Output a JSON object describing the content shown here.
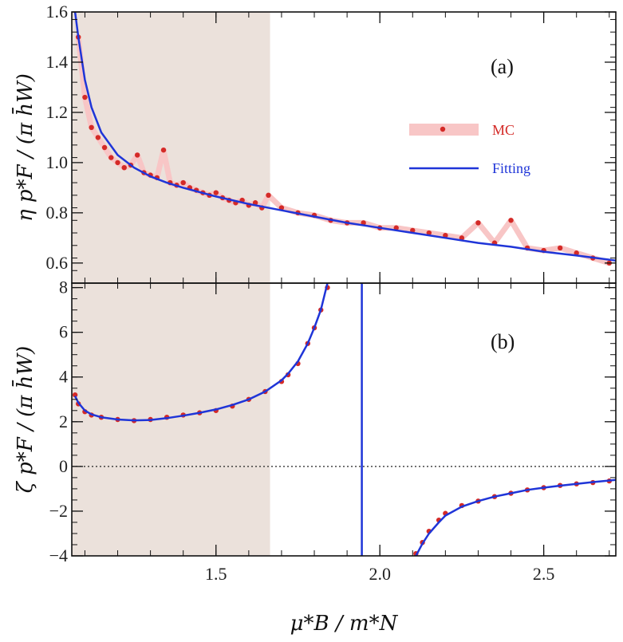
{
  "chart_data": [
    {
      "panel": "a",
      "type": "line",
      "panel_label": "(a)",
      "ylabel": "η p*F / (π h̄W)",
      "xlim": [
        1.06,
        2.72
      ],
      "ylim": [
        0.52,
        1.6
      ],
      "yticks": [
        0.6,
        0.8,
        1.0,
        1.2,
        1.4,
        1.6
      ],
      "ytick_labels": [
        "0.6",
        "0.8",
        "1.0",
        "1.2",
        "1.4",
        "1.6"
      ],
      "shaded_region_x": [
        1.06,
        1.665
      ],
      "legend": {
        "placement": "right",
        "entries": [
          "MC",
          "Fitting"
        ]
      },
      "series": [
        {
          "name": "MC",
          "style": "markers",
          "x": [
            1.08,
            1.1,
            1.12,
            1.14,
            1.16,
            1.18,
            1.2,
            1.22,
            1.24,
            1.26,
            1.28,
            1.3,
            1.32,
            1.34,
            1.36,
            1.38,
            1.4,
            1.42,
            1.44,
            1.46,
            1.48,
            1.5,
            1.52,
            1.54,
            1.56,
            1.58,
            1.6,
            1.62,
            1.64,
            1.66,
            1.7,
            1.75,
            1.8,
            1.85,
            1.9,
            1.95,
            2.0,
            2.05,
            2.1,
            2.15,
            2.2,
            2.25,
            2.3,
            2.35,
            2.4,
            2.45,
            2.5,
            2.55,
            2.6,
            2.65,
            2.7
          ],
          "y": [
            1.5,
            1.26,
            1.14,
            1.1,
            1.06,
            1.02,
            1.0,
            0.98,
            0.99,
            1.03,
            0.96,
            0.95,
            0.94,
            1.05,
            0.92,
            0.91,
            0.92,
            0.9,
            0.89,
            0.88,
            0.87,
            0.88,
            0.86,
            0.85,
            0.84,
            0.85,
            0.83,
            0.84,
            0.82,
            0.87,
            0.82,
            0.8,
            0.79,
            0.77,
            0.76,
            0.76,
            0.74,
            0.74,
            0.73,
            0.72,
            0.71,
            0.7,
            0.76,
            0.68,
            0.77,
            0.66,
            0.65,
            0.66,
            0.64,
            0.62,
            0.6
          ]
        },
        {
          "name": "Fitting",
          "style": "line",
          "x": [
            1.07,
            1.08,
            1.1,
            1.12,
            1.15,
            1.2,
            1.25,
            1.3,
            1.35,
            1.4,
            1.5,
            1.6,
            1.7,
            1.8,
            1.9,
            2.0,
            2.1,
            2.2,
            2.3,
            2.4,
            2.5,
            2.6,
            2.72
          ],
          "y": [
            1.6,
            1.5,
            1.33,
            1.22,
            1.12,
            1.03,
            0.98,
            0.945,
            0.92,
            0.9,
            0.865,
            0.835,
            0.81,
            0.785,
            0.76,
            0.74,
            0.72,
            0.7,
            0.68,
            0.665,
            0.645,
            0.63,
            0.61
          ]
        }
      ]
    },
    {
      "panel": "b",
      "type": "line",
      "panel_label": "(b)",
      "ylabel": "ζ p*F / (π h̄W)",
      "xlabel": "μ*B / m*N",
      "xlim": [
        1.06,
        2.72
      ],
      "ylim": [
        -4,
        8.2
      ],
      "xticks": [
        1.5,
        2.0,
        2.5
      ],
      "xtick_labels": [
        "1.5",
        "2.0",
        "2.5"
      ],
      "yticks": [
        -4,
        -2,
        0,
        2,
        4,
        6,
        8
      ],
      "ytick_labels": [
        "−4",
        "−2",
        "0",
        "2",
        "4",
        "6",
        "8"
      ],
      "shaded_region_x": [
        1.06,
        1.665
      ],
      "zero_line": "dotted",
      "divergence_x": 1.945,
      "series": [
        {
          "name": "MC",
          "style": "markers",
          "x": [
            1.07,
            1.08,
            1.1,
            1.12,
            1.15,
            1.2,
            1.25,
            1.3,
            1.35,
            1.4,
            1.45,
            1.5,
            1.55,
            1.6,
            1.65,
            1.7,
            1.72,
            1.75,
            1.78,
            1.8,
            1.82,
            1.84,
            2.11,
            2.13,
            2.15,
            2.18,
            2.2,
            2.25,
            2.3,
            2.35,
            2.4,
            2.45,
            2.5,
            2.55,
            2.6,
            2.65,
            2.7
          ],
          "y": [
            3.2,
            2.8,
            2.45,
            2.3,
            2.2,
            2.1,
            2.05,
            2.1,
            2.2,
            2.3,
            2.4,
            2.5,
            2.7,
            3.0,
            3.35,
            3.8,
            4.1,
            4.6,
            5.5,
            6.2,
            7.0,
            8.0,
            -3.9,
            -3.4,
            -2.9,
            -2.4,
            -2.1,
            -1.75,
            -1.55,
            -1.35,
            -1.2,
            -1.05,
            -0.95,
            -0.85,
            -0.78,
            -0.72,
            -0.65
          ]
        },
        {
          "name": "Fitting",
          "style": "line",
          "segments": [
            {
              "x": [
                1.07,
                1.08,
                1.1,
                1.12,
                1.15,
                1.2,
                1.25,
                1.3,
                1.35,
                1.4,
                1.45,
                1.5,
                1.55,
                1.6,
                1.65,
                1.7,
                1.72,
                1.75,
                1.78,
                1.8,
                1.82,
                1.84
              ],
              "y": [
                3.15,
                2.85,
                2.5,
                2.33,
                2.2,
                2.1,
                2.06,
                2.08,
                2.16,
                2.27,
                2.4,
                2.55,
                2.75,
                3.0,
                3.35,
                3.85,
                4.15,
                4.7,
                5.5,
                6.2,
                7.0,
                8.2
              ]
            },
            {
              "x": [
                1.945,
                1.945
              ],
              "y": [
                -4,
                8.2
              ]
            },
            {
              "x": [
                2.11,
                2.13,
                2.15,
                2.18,
                2.2,
                2.25,
                2.3,
                2.35,
                2.4,
                2.45,
                2.5,
                2.55,
                2.6,
                2.65,
                2.72
              ],
              "y": [
                -4.0,
                -3.45,
                -3.0,
                -2.5,
                -2.2,
                -1.8,
                -1.55,
                -1.35,
                -1.2,
                -1.05,
                -0.95,
                -0.86,
                -0.78,
                -0.7,
                -0.6
              ]
            }
          ]
        }
      ]
    }
  ],
  "colors": {
    "mc_marker": "#d42a27",
    "mc_band": "#f8c6c6",
    "fit_line": "#1f35d8",
    "shade": "#ebe1db"
  }
}
